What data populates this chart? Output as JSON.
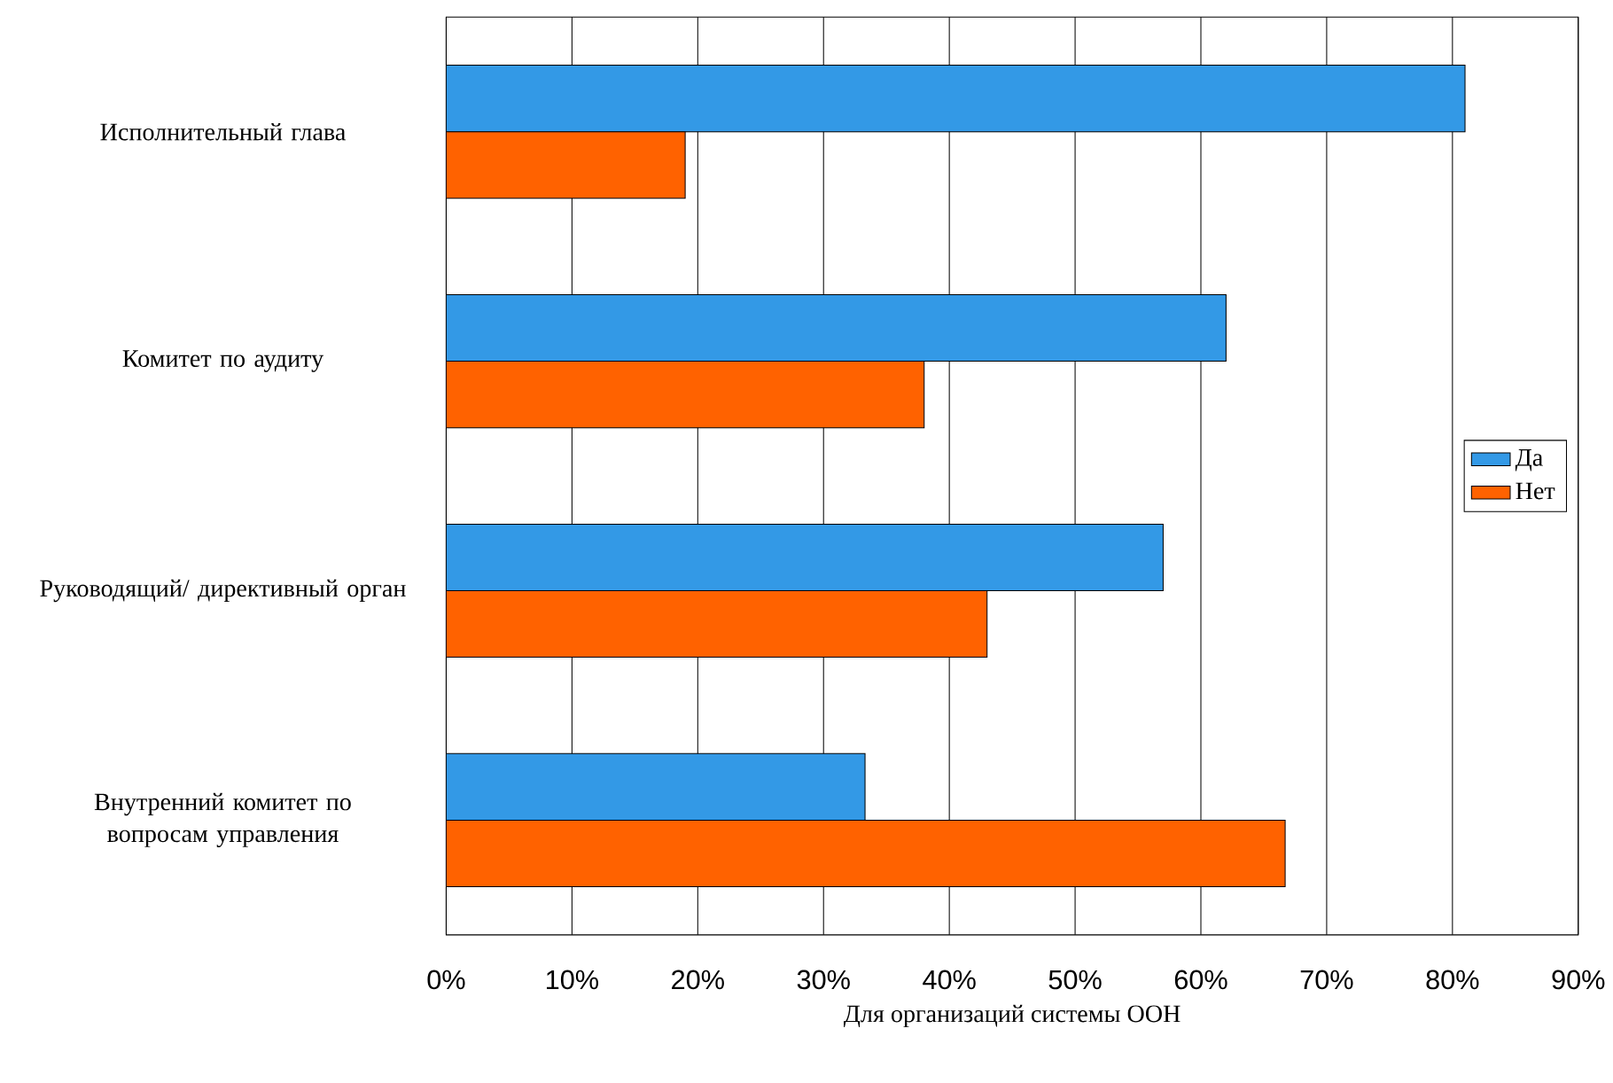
{
  "chart_data": {
    "type": "bar",
    "orientation": "horizontal",
    "xlabel": "Для организаций системы ООН",
    "categories": [
      "Исполнительный глава",
      "Комитет по аудиту",
      "Руководящий/ директивный орган",
      "Внутренний комитет по вопросам управления"
    ],
    "series": [
      {
        "name": "Да",
        "color": "#3399e6",
        "values": [
          81,
          62,
          57,
          33.3
        ]
      },
      {
        "name": "Нет",
        "color": "#ff6200",
        "values": [
          19,
          38,
          43,
          66.7
        ]
      }
    ],
    "xlim": [
      0,
      90
    ],
    "xticks": [
      {
        "value": 0,
        "label": "0%"
      },
      {
        "value": 10,
        "label": "10%"
      },
      {
        "value": 20,
        "label": "20%"
      },
      {
        "value": 30,
        "label": "30%"
      },
      {
        "value": 40,
        "label": "40%"
      },
      {
        "value": 50,
        "label": "50%"
      },
      {
        "value": 60,
        "label": "60%"
      },
      {
        "value": 70,
        "label": "70%"
      },
      {
        "value": 80,
        "label": "80%"
      },
      {
        "value": 90,
        "label": "90%"
      }
    ],
    "grid": "x",
    "legend": "right"
  }
}
